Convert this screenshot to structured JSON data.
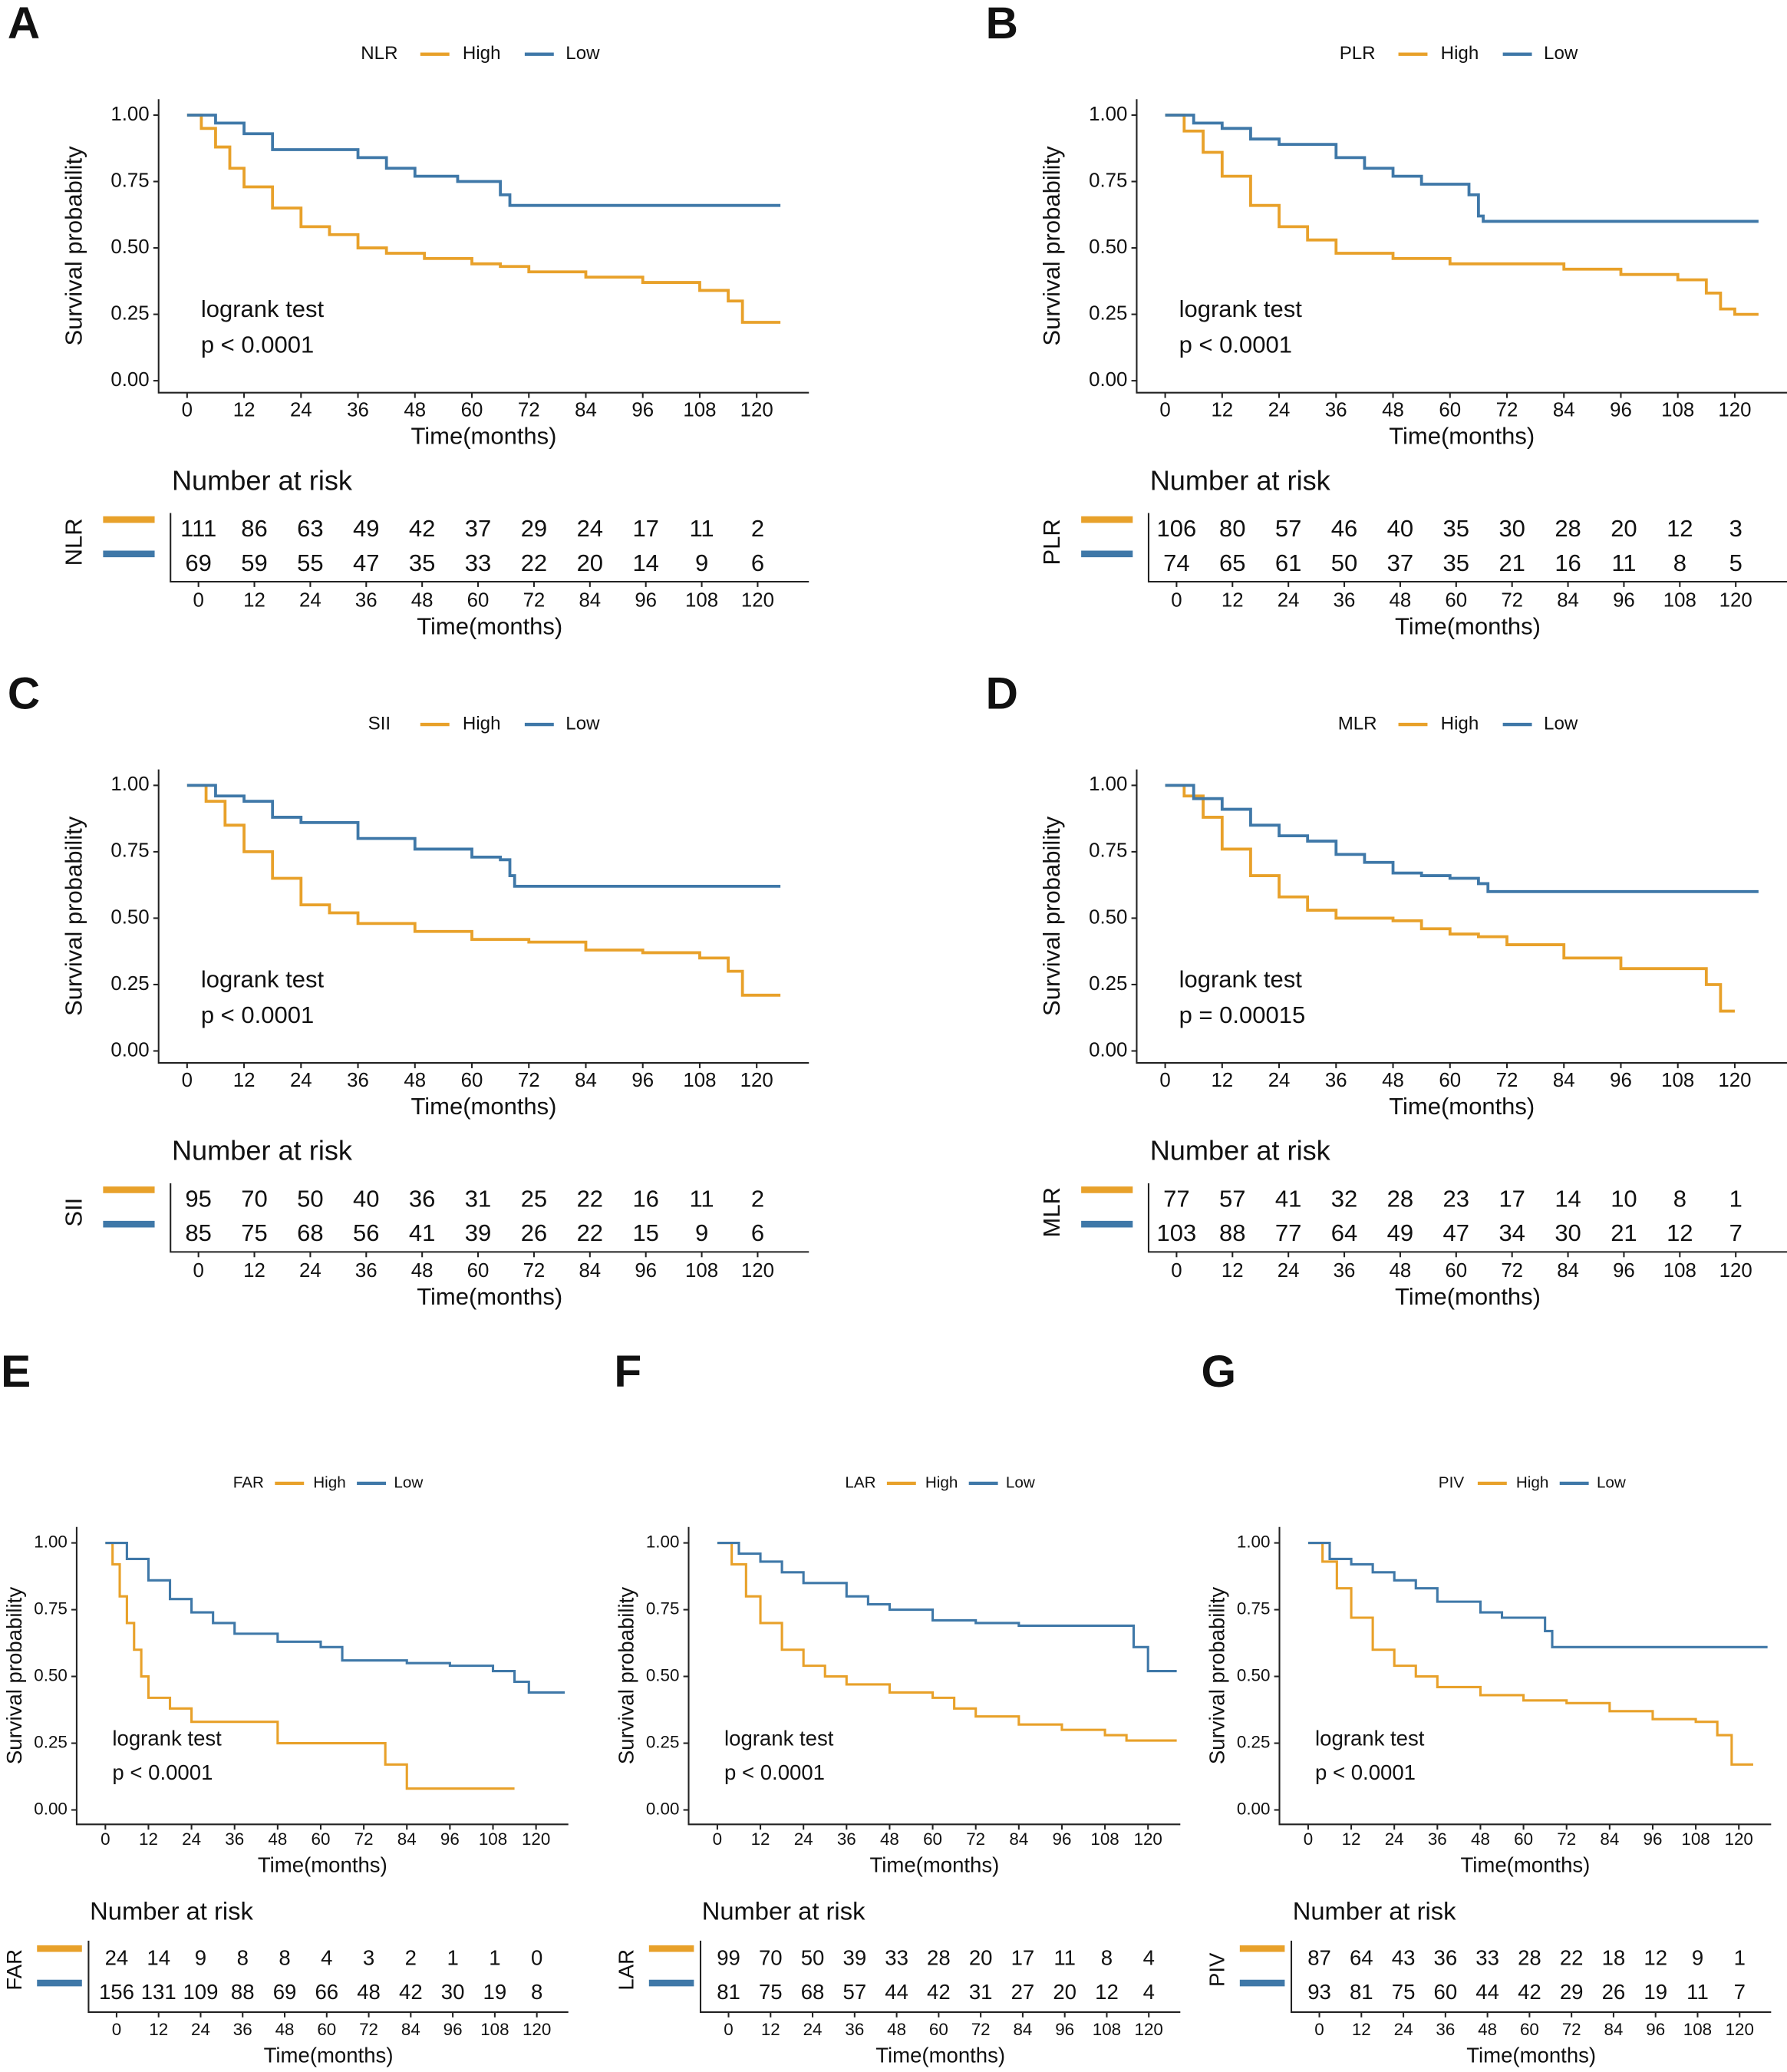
{
  "chart_data": [
    {
      "type": "step",
      "panel": "A",
      "legend_title": "NLR",
      "logrank": "logrank test",
      "p_text": "p < 0.0001",
      "xlabel": "Time(months)",
      "ylabel": "Survival probability",
      "xlim": [
        -6,
        131
      ],
      "ylim": [
        -0.045,
        1.06
      ],
      "xticks": [
        0,
        12,
        24,
        36,
        48,
        60,
        72,
        84,
        96,
        108,
        120
      ],
      "yticks": [
        {
          "value": 0,
          "label": "0.00"
        },
        0.25,
        {
          "value": 0.5,
          "label": "0.50"
        },
        0.75,
        {
          "value": 1,
          "label": "1.00"
        }
      ],
      "series": [
        {
          "name": "High",
          "color": "#E8A12A",
          "x": [
            0,
            3,
            6,
            9,
            12,
            18,
            24,
            30,
            36,
            42,
            50,
            60,
            66,
            72,
            84,
            96,
            108,
            114,
            117,
            125
          ],
          "values": [
            1,
            0.95,
            0.88,
            0.8,
            0.73,
            0.65,
            0.58,
            0.55,
            0.5,
            0.48,
            0.46,
            0.44,
            0.43,
            0.41,
            0.39,
            0.37,
            0.34,
            0.3,
            0.22,
            0.22
          ]
        },
        {
          "name": "Low",
          "color": "#3F78A8",
          "x": [
            0,
            6,
            12,
            18,
            36,
            42,
            48,
            57,
            66,
            68,
            125
          ],
          "values": [
            1,
            0.97,
            0.93,
            0.87,
            0.84,
            0.8,
            0.77,
            0.75,
            0.7,
            0.66,
            0.66
          ]
        }
      ],
      "risk_table": {
        "title": "Number at risk",
        "label": "NLR",
        "rows": [
          [
            111,
            86,
            63,
            49,
            42,
            37,
            29,
            24,
            17,
            11,
            2
          ],
          [
            69,
            59,
            55,
            47,
            35,
            33,
            22,
            20,
            14,
            9,
            6
          ]
        ]
      }
    },
    {
      "type": "step",
      "panel": "B",
      "legend_title": "PLR",
      "logrank": "logrank test",
      "p_text": "p < 0.0001",
      "xlabel": "Time(months)",
      "ylabel": "Survival probability",
      "xlim": [
        -6,
        131
      ],
      "ylim": [
        -0.045,
        1.06
      ],
      "xticks": [
        0,
        12,
        24,
        36,
        48,
        60,
        72,
        84,
        96,
        108,
        120
      ],
      "yticks": [
        {
          "value": 0,
          "label": "0.00"
        },
        0.25,
        {
          "value": 0.5,
          "label": "0.50"
        },
        0.75,
        {
          "value": 1,
          "label": "1.00"
        }
      ],
      "series": [
        {
          "name": "High",
          "color": "#E8A12A",
          "x": [
            0,
            4,
            8,
            12,
            18,
            24,
            30,
            36,
            48,
            60,
            84,
            96,
            108,
            114,
            117,
            120,
            125
          ],
          "values": [
            1,
            0.94,
            0.86,
            0.77,
            0.66,
            0.58,
            0.53,
            0.48,
            0.46,
            0.44,
            0.42,
            0.4,
            0.38,
            0.33,
            0.27,
            0.25,
            0.25
          ]
        },
        {
          "name": "Low",
          "color": "#3F78A8",
          "x": [
            0,
            6,
            12,
            18,
            24,
            36,
            42,
            48,
            54,
            64,
            66,
            67,
            125
          ],
          "values": [
            1,
            0.97,
            0.95,
            0.91,
            0.89,
            0.84,
            0.8,
            0.77,
            0.74,
            0.7,
            0.62,
            0.6,
            0.6
          ]
        }
      ],
      "risk_table": {
        "title": "Number at risk",
        "label": "PLR",
        "rows": [
          [
            106,
            80,
            57,
            46,
            40,
            35,
            30,
            28,
            20,
            12,
            3
          ],
          [
            74,
            65,
            61,
            50,
            37,
            35,
            21,
            16,
            11,
            8,
            5
          ]
        ]
      }
    },
    {
      "type": "step",
      "panel": "C",
      "legend_title": "SII",
      "logrank": "logrank test",
      "p_text": "p < 0.0001",
      "xlabel": "Time(months)",
      "ylabel": "Survival probability",
      "xlim": [
        -6,
        131
      ],
      "ylim": [
        -0.045,
        1.06
      ],
      "xticks": [
        0,
        12,
        24,
        36,
        48,
        60,
        72,
        84,
        96,
        108,
        120
      ],
      "yticks": [
        {
          "value": 0,
          "label": "0.00"
        },
        0.25,
        {
          "value": 0.5,
          "label": "0.50"
        },
        0.75,
        {
          "value": 1,
          "label": "1.00"
        }
      ],
      "series": [
        {
          "name": "High",
          "color": "#E8A12A",
          "x": [
            0,
            4,
            8,
            12,
            18,
            24,
            30,
            36,
            48,
            60,
            72,
            84,
            96,
            108,
            114,
            117,
            125
          ],
          "values": [
            1,
            0.94,
            0.85,
            0.75,
            0.65,
            0.55,
            0.52,
            0.48,
            0.45,
            0.42,
            0.41,
            0.38,
            0.37,
            0.35,
            0.3,
            0.21,
            0.21
          ]
        },
        {
          "name": "Low",
          "color": "#3F78A8",
          "x": [
            0,
            6,
            12,
            18,
            24,
            36,
            48,
            60,
            66,
            68,
            69,
            125
          ],
          "values": [
            1,
            0.96,
            0.94,
            0.88,
            0.86,
            0.8,
            0.76,
            0.73,
            0.72,
            0.66,
            0.62,
            0.62
          ]
        }
      ],
      "risk_table": {
        "title": "Number at risk",
        "label": "SII",
        "rows": [
          [
            95,
            70,
            50,
            40,
            36,
            31,
            25,
            22,
            16,
            11,
            2
          ],
          [
            85,
            75,
            68,
            56,
            41,
            39,
            26,
            22,
            15,
            9,
            6
          ]
        ]
      }
    },
    {
      "type": "step",
      "panel": "D",
      "legend_title": "MLR",
      "logrank": "logrank test",
      "p_text": "p = 0.00015",
      "xlabel": "Time(months)",
      "ylabel": "Survival probability",
      "xlim": [
        -6,
        131
      ],
      "ylim": [
        -0.045,
        1.06
      ],
      "xticks": [
        0,
        12,
        24,
        36,
        48,
        60,
        72,
        84,
        96,
        108,
        120
      ],
      "yticks": [
        {
          "value": 0,
          "label": "0.00"
        },
        0.25,
        {
          "value": 0.5,
          "label": "0.50"
        },
        0.75,
        {
          "value": 1,
          "label": "1.00"
        }
      ],
      "series": [
        {
          "name": "High",
          "color": "#E8A12A",
          "x": [
            0,
            4,
            8,
            12,
            18,
            24,
            30,
            36,
            48,
            54,
            60,
            66,
            72,
            84,
            96,
            108,
            114,
            117,
            120
          ],
          "values": [
            1,
            0.96,
            0.88,
            0.76,
            0.66,
            0.58,
            0.53,
            0.5,
            0.49,
            0.46,
            0.44,
            0.43,
            0.4,
            0.35,
            0.31,
            0.31,
            0.25,
            0.15,
            0.15
          ]
        },
        {
          "name": "Low",
          "color": "#3F78A8",
          "x": [
            0,
            6,
            12,
            18,
            24,
            30,
            36,
            42,
            48,
            54,
            60,
            66,
            68,
            125
          ],
          "values": [
            1,
            0.95,
            0.91,
            0.85,
            0.81,
            0.79,
            0.74,
            0.71,
            0.67,
            0.66,
            0.65,
            0.63,
            0.6,
            0.6
          ]
        }
      ],
      "risk_table": {
        "title": "Number at risk",
        "label": "MLR",
        "rows": [
          [
            77,
            57,
            41,
            32,
            28,
            23,
            17,
            14,
            10,
            8,
            1
          ],
          [
            103,
            88,
            77,
            64,
            49,
            47,
            34,
            30,
            21,
            12,
            7
          ]
        ]
      }
    },
    {
      "type": "step",
      "panel": "E",
      "legend_title": "FAR",
      "logrank": "logrank test",
      "p_text": "p < 0.0001",
      "xlabel": "Time(months)",
      "ylabel": "Survival probability",
      "xlim": [
        -8,
        129
      ],
      "ylim": [
        -0.054,
        1.06
      ],
      "xticks": [
        0,
        12,
        24,
        36,
        48,
        60,
        72,
        84,
        96,
        108,
        120
      ],
      "yticks": [
        {
          "value": 0,
          "label": "0.00"
        },
        0.25,
        {
          "value": 0.5,
          "label": "0.50"
        },
        0.75,
        {
          "value": 1,
          "label": "1.00"
        }
      ],
      "series": [
        {
          "name": "High",
          "color": "#E8A12A",
          "x": [
            0,
            2,
            4,
            6,
            8,
            10,
            12,
            18,
            24,
            48,
            78,
            84,
            114
          ],
          "values": [
            1,
            0.92,
            0.8,
            0.7,
            0.6,
            0.5,
            0.42,
            0.38,
            0.33,
            0.25,
            0.17,
            0.08,
            0.08
          ]
        },
        {
          "name": "Low",
          "color": "#3F78A8",
          "x": [
            0,
            6,
            12,
            18,
            24,
            30,
            36,
            48,
            60,
            66,
            84,
            96,
            108,
            114,
            118,
            128
          ],
          "values": [
            1,
            0.94,
            0.86,
            0.79,
            0.74,
            0.7,
            0.66,
            0.63,
            0.61,
            0.56,
            0.55,
            0.54,
            0.52,
            0.48,
            0.44,
            0.44
          ]
        }
      ],
      "risk_table": {
        "title": "Number at risk",
        "label": "FAR",
        "rows": [
          [
            24,
            14,
            9,
            8,
            8,
            4,
            3,
            2,
            1,
            1,
            0
          ],
          [
            156,
            131,
            109,
            88,
            69,
            66,
            48,
            42,
            30,
            19,
            8
          ]
        ]
      }
    },
    {
      "type": "step",
      "panel": "F",
      "legend_title": "LAR",
      "logrank": "logrank test",
      "p_text": "p < 0.0001",
      "xlabel": "Time(months)",
      "ylabel": "Survival probability",
      "xlim": [
        -8,
        129
      ],
      "ylim": [
        -0.054,
        1.06
      ],
      "xticks": [
        0,
        12,
        24,
        36,
        48,
        60,
        72,
        84,
        96,
        108,
        120
      ],
      "yticks": [
        {
          "value": 0,
          "label": "0.00"
        },
        0.25,
        {
          "value": 0.5,
          "label": "0.50"
        },
        0.75,
        {
          "value": 1,
          "label": "1.00"
        }
      ],
      "series": [
        {
          "name": "High",
          "color": "#E8A12A",
          "x": [
            0,
            4,
            8,
            12,
            18,
            24,
            30,
            36,
            48,
            60,
            66,
            72,
            84,
            96,
            108,
            114,
            128
          ],
          "values": [
            1,
            0.92,
            0.8,
            0.7,
            0.6,
            0.54,
            0.5,
            0.47,
            0.44,
            0.42,
            0.38,
            0.35,
            0.32,
            0.3,
            0.28,
            0.26,
            0.26
          ]
        },
        {
          "name": "Low",
          "color": "#3F78A8",
          "x": [
            0,
            6,
            12,
            18,
            24,
            36,
            42,
            48,
            60,
            72,
            84,
            116,
            120,
            128
          ],
          "values": [
            1,
            0.96,
            0.93,
            0.89,
            0.85,
            0.8,
            0.77,
            0.75,
            0.71,
            0.7,
            0.69,
            0.61,
            0.52,
            0.52
          ]
        }
      ],
      "risk_table": {
        "title": "Number at risk",
        "label": "LAR",
        "rows": [
          [
            99,
            70,
            50,
            39,
            33,
            28,
            20,
            17,
            11,
            8,
            4
          ],
          [
            81,
            75,
            68,
            57,
            44,
            42,
            31,
            27,
            20,
            12,
            4
          ]
        ]
      }
    },
    {
      "type": "step",
      "panel": "G",
      "legend_title": "PIV",
      "logrank": "logrank test",
      "p_text": "p < 0.0001",
      "xlabel": "Time(months)",
      "ylabel": "Survival probability",
      "xlim": [
        -8,
        129
      ],
      "ylim": [
        -0.054,
        1.06
      ],
      "xticks": [
        0,
        12,
        24,
        36,
        48,
        60,
        72,
        84,
        96,
        108,
        120
      ],
      "yticks": [
        {
          "value": 0,
          "label": "0.00"
        },
        0.25,
        {
          "value": 0.5,
          "label": "0.50"
        },
        0.75,
        {
          "value": 1,
          "label": "1.00"
        }
      ],
      "series": [
        {
          "name": "High",
          "color": "#E8A12A",
          "x": [
            0,
            4,
            8,
            12,
            18,
            24,
            30,
            36,
            48,
            60,
            72,
            84,
            96,
            108,
            114,
            118,
            124
          ],
          "values": [
            1,
            0.93,
            0.83,
            0.72,
            0.6,
            0.54,
            0.5,
            0.46,
            0.43,
            0.41,
            0.4,
            0.37,
            0.34,
            0.33,
            0.28,
            0.17,
            0.17
          ]
        },
        {
          "name": "Low",
          "color": "#3F78A8",
          "x": [
            0,
            6,
            12,
            18,
            24,
            30,
            36,
            48,
            54,
            66,
            68,
            128
          ],
          "values": [
            1,
            0.94,
            0.92,
            0.89,
            0.86,
            0.83,
            0.78,
            0.74,
            0.72,
            0.67,
            0.61,
            0.61
          ]
        }
      ],
      "risk_table": {
        "title": "Number at risk",
        "label": "PIV",
        "rows": [
          [
            87,
            64,
            43,
            36,
            33,
            28,
            22,
            18,
            12,
            9,
            1
          ],
          [
            93,
            81,
            75,
            60,
            44,
            42,
            29,
            26,
            19,
            11,
            7
          ]
        ]
      }
    }
  ]
}
